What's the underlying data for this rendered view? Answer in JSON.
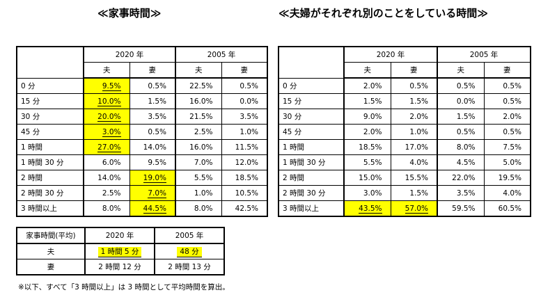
{
  "left": {
    "title": "≪家事時間≫",
    "year_a": "2020 年",
    "year_b": "2005 年",
    "husband": "夫",
    "wife": "妻",
    "rows": [
      {
        "label": "0 分",
        "v": [
          "9.5%",
          "0.5%",
          "22.5%",
          "0.5%"
        ],
        "hl": [
          true,
          false,
          false,
          false
        ]
      },
      {
        "label": "15 分",
        "v": [
          "10.0%",
          "1.5%",
          "16.0%",
          "0.0%"
        ],
        "hl": [
          true,
          false,
          false,
          false
        ]
      },
      {
        "label": "30 分",
        "v": [
          "20.0%",
          "3.5%",
          "21.5%",
          "3.5%"
        ],
        "hl": [
          true,
          false,
          false,
          false
        ]
      },
      {
        "label": "45 分",
        "v": [
          "3.0%",
          "0.5%",
          "2.5%",
          "1.0%"
        ],
        "hl": [
          true,
          false,
          false,
          false
        ]
      },
      {
        "label": "1 時間",
        "v": [
          "27.0%",
          "14.0%",
          "16.0%",
          "11.5%"
        ],
        "hl": [
          true,
          false,
          false,
          false
        ]
      },
      {
        "label": "1 時間 30 分",
        "v": [
          "6.0%",
          "9.5%",
          "7.0%",
          "12.0%"
        ],
        "hl": [
          false,
          false,
          false,
          false
        ]
      },
      {
        "label": "2 時間",
        "v": [
          "14.0%",
          "19.0%",
          "5.5%",
          "18.5%"
        ],
        "hl": [
          false,
          true,
          false,
          false
        ]
      },
      {
        "label": "2 時間 30 分",
        "v": [
          "2.5%",
          "7.0%",
          "1.0%",
          "10.5%"
        ],
        "hl": [
          false,
          true,
          false,
          false
        ]
      },
      {
        "label": "3 時間以上",
        "v": [
          "8.0%",
          "44.5%",
          "8.0%",
          "42.5%"
        ],
        "hl": [
          false,
          true,
          false,
          false
        ]
      }
    ]
  },
  "right": {
    "title": "≪夫婦がそれぞれ別のことをしている時間≫",
    "year_a": "2020 年",
    "year_b": "2005 年",
    "husband": "夫",
    "wife": "妻",
    "rows": [
      {
        "label": "0 分",
        "v": [
          "2.0%",
          "0.5%",
          "0.5%",
          "0.5%"
        ],
        "hl": [
          false,
          false,
          false,
          false
        ]
      },
      {
        "label": "15 分",
        "v": [
          "1.5%",
          "1.5%",
          "0.0%",
          "0.5%"
        ],
        "hl": [
          false,
          false,
          false,
          false
        ]
      },
      {
        "label": "30 分",
        "v": [
          "9.0%",
          "2.0%",
          "1.5%",
          "2.0%"
        ],
        "hl": [
          false,
          false,
          false,
          false
        ]
      },
      {
        "label": "45 分",
        "v": [
          "2.0%",
          "1.0%",
          "0.5%",
          "0.5%"
        ],
        "hl": [
          false,
          false,
          false,
          false
        ]
      },
      {
        "label": "1 時間",
        "v": [
          "18.5%",
          "17.0%",
          "8.0%",
          "7.5%"
        ],
        "hl": [
          false,
          false,
          false,
          false
        ]
      },
      {
        "label": "1 時間 30 分",
        "v": [
          "5.5%",
          "4.0%",
          "4.5%",
          "5.0%"
        ],
        "hl": [
          false,
          false,
          false,
          false
        ]
      },
      {
        "label": "2 時間",
        "v": [
          "15.0%",
          "15.5%",
          "22.0%",
          "19.5%"
        ],
        "hl": [
          false,
          false,
          false,
          false
        ]
      },
      {
        "label": "2 時間 30 分",
        "v": [
          "3.0%",
          "1.5%",
          "3.5%",
          "4.0%"
        ],
        "hl": [
          false,
          false,
          false,
          false
        ]
      },
      {
        "label": "3 時間以上",
        "v": [
          "43.5%",
          "57.0%",
          "59.5%",
          "60.5%"
        ],
        "hl": [
          true,
          true,
          false,
          false
        ]
      }
    ]
  },
  "average": {
    "header": "家事時間(平均)",
    "year_a": "2020 年",
    "year_b": "2005 年",
    "rows": [
      {
        "label": "夫",
        "a": "1 時間 5 分",
        "b": "48 分"
      },
      {
        "label": "妻",
        "a": "2 時間 12 分",
        "b": "2 時間 13 分"
      }
    ]
  },
  "note": "※以下、すべて「3 時間以上」は 3 時間として平均時間を算出。",
  "colors": {
    "highlight": "#ffff00"
  }
}
